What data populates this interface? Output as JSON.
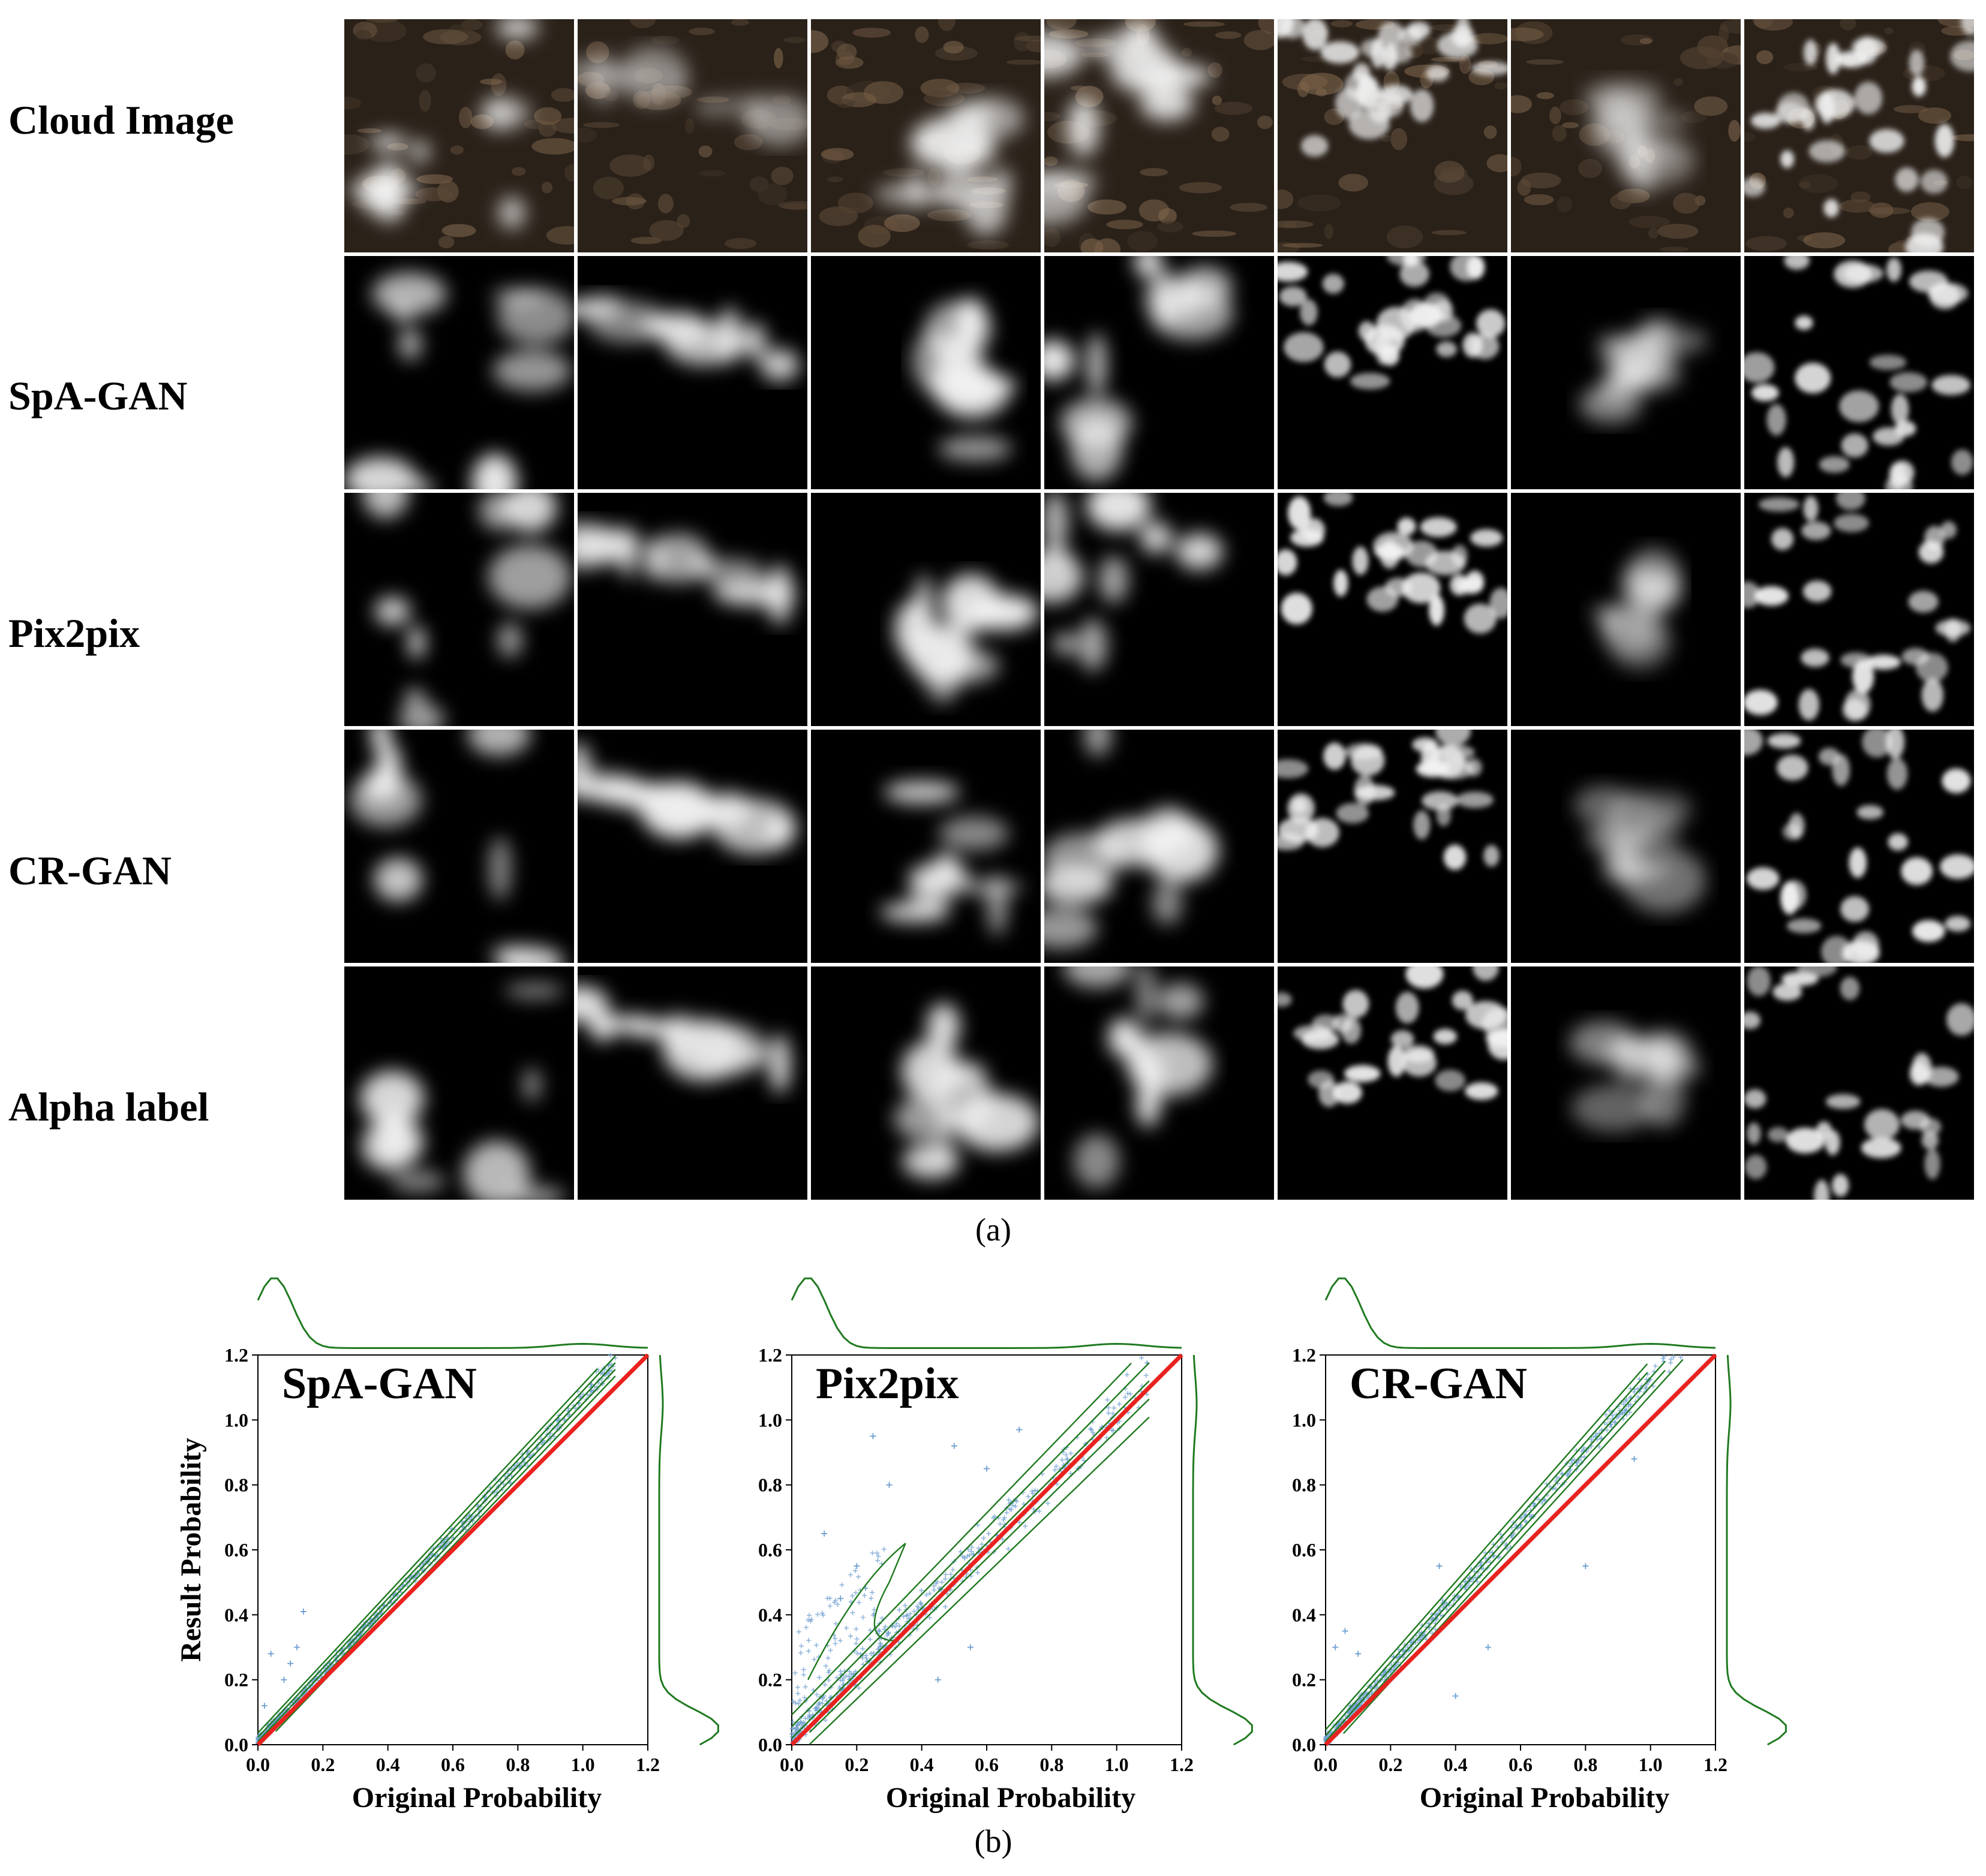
{
  "figure_a": {
    "row_labels": [
      "Cloud Image",
      "SpA-GAN",
      "Pix2pix",
      "CR-GAN",
      "Alpha label"
    ],
    "columns": 7,
    "caption": "(a)"
  },
  "figure_b": {
    "caption": "(b)",
    "ylabel": "Result Probability",
    "xlabel": "Original Probability"
  },
  "chart_data": [
    {
      "type": "scatter",
      "title": "SpA-GAN",
      "xlabel": "Original Probability",
      "ylabel": "Result Probability",
      "xlim": [
        0,
        1.2
      ],
      "ylim": [
        0,
        1.2
      ],
      "xticks": [
        "0.0",
        "0.2",
        "0.4",
        "0.6",
        "0.8",
        "1.0",
        "1.2"
      ],
      "yticks": [
        "0.0",
        "0.2",
        "0.4",
        "0.6",
        "0.8",
        "1.0",
        "1.2"
      ],
      "reference_line": {
        "color": "#e8231f",
        "x": [
          0,
          1.2
        ],
        "y": [
          0,
          1.2
        ]
      },
      "scatter_color": "#6f9fd0",
      "contour_color": "#1f7a1f",
      "fit": {
        "slope": 1.06,
        "intercept": 0.01,
        "spread": 0.022
      },
      "outliers": [
        [
          0.04,
          0.28
        ],
        [
          0.08,
          0.2
        ],
        [
          0.1,
          0.25
        ],
        [
          0.02,
          0.12
        ],
        [
          0.12,
          0.3
        ],
        [
          0.14,
          0.41
        ]
      ],
      "marginal_x_peak": 0.05,
      "marginal_y_peak": 0.05,
      "grid": false
    },
    {
      "type": "scatter",
      "title": "Pix2pix",
      "xlabel": "Original Probability",
      "ylabel": "Result Probability",
      "xlim": [
        0,
        1.2
      ],
      "ylim": [
        0,
        1.2
      ],
      "xticks": [
        "0.0",
        "0.2",
        "0.4",
        "0.6",
        "0.8",
        "1.0",
        "1.2"
      ],
      "yticks": [
        "0.0",
        "0.2",
        "0.4",
        "0.6",
        "0.8",
        "1.0",
        "1.2"
      ],
      "reference_line": {
        "color": "#e8231f",
        "x": [
          0,
          1.2
        ],
        "y": [
          0,
          1.2
        ]
      },
      "scatter_color": "#6f9fd0",
      "contour_color": "#1f7a1f",
      "fit": {
        "slope": 1.0,
        "intercept": 0.02,
        "spread": 0.06
      },
      "branch": {
        "x": [
          0.05,
          0.35
        ],
        "y": [
          0.2,
          0.62
        ]
      },
      "outliers": [
        [
          0.25,
          0.95
        ],
        [
          0.3,
          0.8
        ],
        [
          0.1,
          0.65
        ],
        [
          0.2,
          0.55
        ],
        [
          0.5,
          0.92
        ],
        [
          0.6,
          0.85
        ],
        [
          0.7,
          0.97
        ],
        [
          0.45,
          0.2
        ],
        [
          0.55,
          0.3
        ],
        [
          0.15,
          0.45
        ]
      ],
      "marginal_x_peak": 0.05,
      "marginal_y_peak": 0.05,
      "grid": false
    },
    {
      "type": "scatter",
      "title": "CR-GAN",
      "xlabel": "Original Probability",
      "ylabel": "Result Probability",
      "xlim": [
        0,
        1.2
      ],
      "ylim": [
        0,
        1.2
      ],
      "xticks": [
        "0.0",
        "0.2",
        "0.4",
        "0.6",
        "0.8",
        "1.0",
        "1.2"
      ],
      "yticks": [
        "0.0",
        "0.2",
        "0.4",
        "0.6",
        "0.8",
        "1.0",
        "1.2"
      ],
      "reference_line": {
        "color": "#e8231f",
        "x": [
          0,
          1.2
        ],
        "y": [
          0,
          1.2
        ]
      },
      "scatter_color": "#6f9fd0",
      "contour_color": "#1f7a1f",
      "fit": {
        "slope": 1.12,
        "intercept": 0.01,
        "spread": 0.03
      },
      "outliers": [
        [
          0.03,
          0.3
        ],
        [
          0.06,
          0.35
        ],
        [
          0.1,
          0.28
        ],
        [
          0.4,
          0.15
        ],
        [
          0.5,
          0.3
        ],
        [
          0.8,
          0.55
        ],
        [
          0.95,
          0.88
        ],
        [
          0.35,
          0.55
        ]
      ],
      "marginal_x_peak": 0.05,
      "marginal_y_peak": 0.05,
      "grid": false
    }
  ]
}
